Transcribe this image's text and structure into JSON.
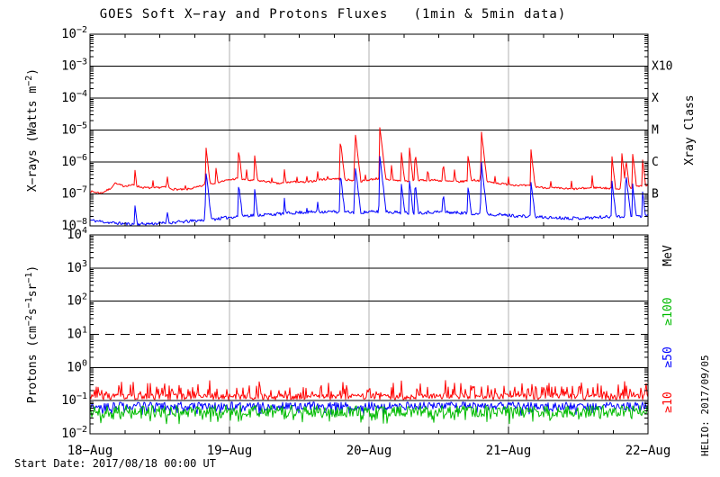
{
  "title": "GOES Soft X−ray and Protons Fluxes   (1min & 5min data)",
  "footer": {
    "start_date": "Start Date: 2017/08/18 00:00 UT",
    "credit": "HELIO: 2017/09/05"
  },
  "colors": {
    "red": "#ff0000",
    "blue": "#0000ff",
    "green": "#00bb00",
    "black": "#000000",
    "day_line": "#b0b0b0",
    "background": "#ffffff"
  },
  "x_axis": {
    "labels": [
      "18−Aug",
      "19−Aug",
      "20−Aug",
      "21−Aug",
      "22−Aug"
    ],
    "days": [
      0,
      1,
      2,
      3,
      4
    ],
    "minor_ticks_per_day": 4
  },
  "chart_data": [
    {
      "type": "line",
      "name": "xray",
      "ylabel_parts": [
        [
          "t",
          "X−rays (Watts m"
        ],
        [
          "s",
          "−2"
        ],
        [
          "t",
          ")"
        ]
      ],
      "ylim_log": [
        -8,
        -2
      ],
      "ytick_exponents": [
        -2,
        -3,
        -4,
        -5,
        -6,
        -7,
        -8
      ],
      "grid_exponents_solid": [
        -3,
        -4,
        -5,
        -6,
        -7
      ],
      "grid_exponents_dashed": [],
      "right_axis_title": "Xray Class",
      "right_labels": [
        {
          "label": "X10",
          "color_key": "black",
          "y_log": -3
        },
        {
          "label": "X",
          "color_key": "black",
          "y_log": -4
        },
        {
          "label": "M",
          "color_key": "black",
          "y_log": -5
        },
        {
          "label": "C",
          "color_key": "black",
          "y_log": -6
        },
        {
          "label": "B",
          "color_key": "black",
          "y_log": -7
        }
      ],
      "series": [
        {
          "name": "xray-long-wavelength",
          "color_key": "red",
          "noise": 0.032,
          "seed": 7,
          "baseline": [
            [
              0,
              -6.92
            ],
            [
              0.08,
              -6.97
            ],
            [
              0.14,
              -6.85
            ],
            [
              0.18,
              -6.68
            ],
            [
              0.24,
              -6.75
            ],
            [
              0.3,
              -6.72
            ],
            [
              0.38,
              -6.8
            ],
            [
              0.46,
              -6.82
            ],
            [
              0.52,
              -6.78
            ],
            [
              0.6,
              -6.85
            ],
            [
              0.68,
              -6.87
            ],
            [
              0.76,
              -6.8
            ],
            [
              0.86,
              -6.68
            ],
            [
              0.95,
              -6.6
            ],
            [
              1.05,
              -6.52
            ],
            [
              1.15,
              -6.58
            ],
            [
              1.25,
              -6.6
            ],
            [
              1.35,
              -6.68
            ],
            [
              1.45,
              -6.62
            ],
            [
              1.55,
              -6.64
            ],
            [
              1.65,
              -6.55
            ],
            [
              1.75,
              -6.52
            ],
            [
              1.85,
              -6.56
            ],
            [
              1.95,
              -6.6
            ],
            [
              2.05,
              -6.52
            ],
            [
              2.15,
              -6.56
            ],
            [
              2.25,
              -6.6
            ],
            [
              2.35,
              -6.58
            ],
            [
              2.45,
              -6.56
            ],
            [
              2.55,
              -6.6
            ],
            [
              2.65,
              -6.62
            ],
            [
              2.75,
              -6.56
            ],
            [
              2.85,
              -6.62
            ],
            [
              2.95,
              -6.68
            ],
            [
              3.05,
              -6.72
            ],
            [
              3.15,
              -6.75
            ],
            [
              3.25,
              -6.8
            ],
            [
              3.35,
              -6.82
            ],
            [
              3.45,
              -6.85
            ],
            [
              3.55,
              -6.82
            ],
            [
              3.65,
              -6.8
            ],
            [
              3.75,
              -6.84
            ],
            [
              3.85,
              -6.82
            ],
            [
              3.95,
              -6.76
            ],
            [
              4,
              -6.74
            ]
          ],
          "flares": [
            [
              0.18,
              -6.6
            ],
            [
              0.32,
              -6.15
            ],
            [
              0.45,
              -6.55
            ],
            [
              0.55,
              -6.28
            ],
            [
              0.68,
              -6.6
            ],
            [
              0.83,
              -5.48
            ],
            [
              0.9,
              -6.05
            ],
            [
              1.065,
              -5.58
            ],
            [
              1.12,
              -6.15
            ],
            [
              1.18,
              -5.78
            ],
            [
              1.3,
              -6.35
            ],
            [
              1.39,
              -6.12
            ],
            [
              1.48,
              -6.3
            ],
            [
              1.55,
              -6.28
            ],
            [
              1.63,
              -6.2
            ],
            [
              1.7,
              -6.35
            ],
            [
              1.794,
              -5.3
            ],
            [
              1.9,
              -5.02
            ],
            [
              1.97,
              -6.25
            ],
            [
              2.077,
              -4.9
            ],
            [
              2.16,
              -6.05
            ],
            [
              2.23,
              -5.62
            ],
            [
              2.29,
              -5.58
            ],
            [
              2.33,
              -5.66
            ],
            [
              2.42,
              -6.15
            ],
            [
              2.53,
              -5.95
            ],
            [
              2.61,
              -6.15
            ],
            [
              2.71,
              -5.72
            ],
            [
              2.805,
              -5.04
            ],
            [
              2.9,
              -6.3
            ],
            [
              3.0,
              -6.45
            ],
            [
              3.16,
              -5.58
            ],
            [
              3.3,
              -6.5
            ],
            [
              3.45,
              -6.55
            ],
            [
              3.6,
              -6.45
            ],
            [
              3.74,
              -5.77
            ],
            [
              3.81,
              -5.66
            ],
            [
              3.84,
              -5.8
            ],
            [
              3.89,
              -5.72
            ],
            [
              3.96,
              -5.86
            ]
          ]
        },
        {
          "name": "xray-short-wavelength",
          "color_key": "blue",
          "noise": 0.05,
          "seed": 11,
          "baseline": [
            [
              0,
              -7.82
            ],
            [
              0.15,
              -7.9
            ],
            [
              0.3,
              -7.95
            ],
            [
              0.5,
              -7.92
            ],
            [
              0.7,
              -7.86
            ],
            [
              0.9,
              -7.78
            ],
            [
              1.1,
              -7.68
            ],
            [
              1.3,
              -7.64
            ],
            [
              1.5,
              -7.58
            ],
            [
              1.7,
              -7.55
            ],
            [
              1.9,
              -7.58
            ],
            [
              2.1,
              -7.55
            ],
            [
              2.3,
              -7.6
            ],
            [
              2.5,
              -7.56
            ],
            [
              2.7,
              -7.6
            ],
            [
              2.9,
              -7.64
            ],
            [
              3.1,
              -7.7
            ],
            [
              3.3,
              -7.74
            ],
            [
              3.5,
              -7.76
            ],
            [
              3.7,
              -7.72
            ],
            [
              3.9,
              -7.7
            ],
            [
              4,
              -7.68
            ]
          ],
          "flares": [
            [
              0.32,
              -7.25
            ],
            [
              0.55,
              -7.35
            ],
            [
              0.83,
              -6.25
            ],
            [
              1.065,
              -6.65
            ],
            [
              1.18,
              -6.85
            ],
            [
              1.39,
              -7.05
            ],
            [
              1.55,
              -7.25
            ],
            [
              1.63,
              -7.15
            ],
            [
              1.794,
              -6.35
            ],
            [
              1.9,
              -6.05
            ],
            [
              2.077,
              -5.8
            ],
            [
              2.23,
              -6.6
            ],
            [
              2.29,
              -6.55
            ],
            [
              2.33,
              -6.62
            ],
            [
              2.53,
              -6.9
            ],
            [
              2.71,
              -6.72
            ],
            [
              2.805,
              -6.0
            ],
            [
              3.16,
              -6.55
            ],
            [
              3.74,
              -6.5
            ],
            [
              3.84,
              -6.3
            ],
            [
              3.89,
              -6.72
            ],
            [
              3.96,
              -6.88
            ]
          ]
        }
      ]
    },
    {
      "type": "line",
      "name": "protons",
      "ylabel_parts": [
        [
          "t",
          "Protons (cm"
        ],
        [
          "s",
          "−2"
        ],
        [
          "t",
          "s"
        ],
        [
          "s",
          "−1"
        ],
        [
          "t",
          "sr"
        ],
        [
          "s",
          "−1"
        ],
        [
          "t",
          ")"
        ]
      ],
      "ylim_log": [
        -2,
        4
      ],
      "ytick_exponents": [
        4,
        3,
        2,
        1,
        0,
        -1,
        -2
      ],
      "grid_exponents_solid": [
        3,
        2,
        0,
        -1
      ],
      "grid_exponents_dashed": [
        1
      ],
      "right_axis_title": "MeV",
      "right_labels": [
        {
          "label": "≥100",
          "color_key": "green",
          "y_log": 1.69
        },
        {
          "label": "≥50",
          "color_key": "blue",
          "y_log": 0.31
        },
        {
          "label": "≥10",
          "color_key": "red",
          "y_log": -1.05
        }
      ],
      "series": [
        {
          "name": "protons-ge50MeV",
          "color_key": "blue",
          "seed": 17,
          "band": {
            "level": -1.04,
            "dir": -1,
            "spread": 0.24,
            "spike_p": 0.2,
            "spike_mag": 0.18
          }
        },
        {
          "name": "protons-ge100MeV",
          "color_key": "green",
          "seed": 19,
          "band": {
            "level": -1.14,
            "dir": -1,
            "spread": 0.36,
            "spike_p": 0.3,
            "spike_mag": 0.22
          }
        },
        {
          "name": "protons-ge10MeV",
          "color_key": "red",
          "seed": 13,
          "band": {
            "level": -0.97,
            "dir": 1,
            "spread": 0.18,
            "spike_p": 0.32,
            "spike_mag": 0.42
          }
        }
      ]
    }
  ]
}
